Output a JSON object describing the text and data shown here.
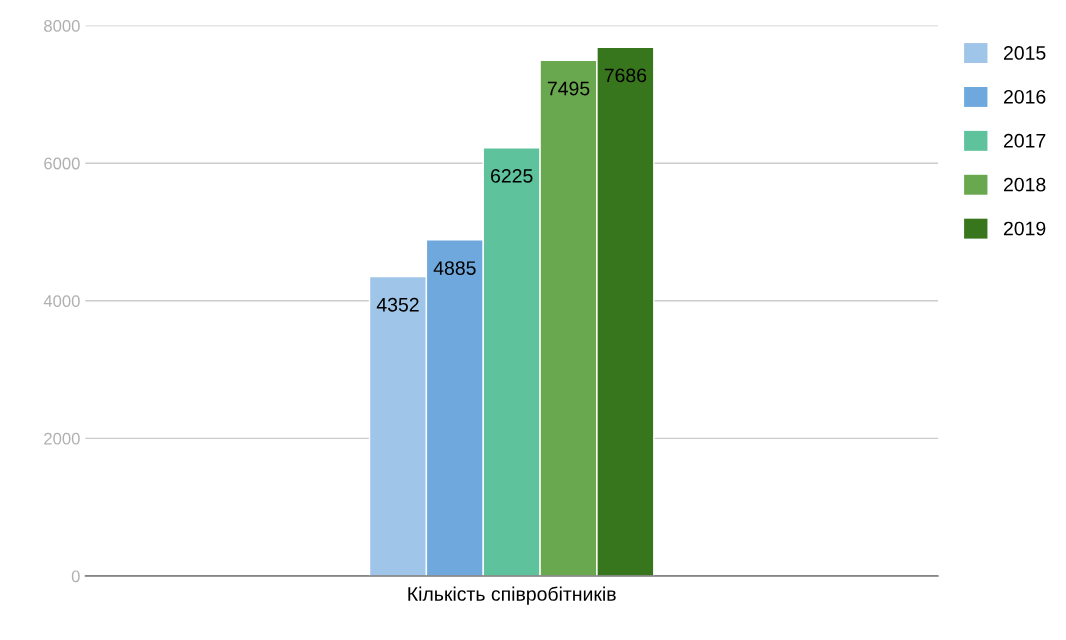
{
  "chart_data": {
    "type": "bar",
    "xlabel": "Кількість співробітників",
    "categories": [
      null
    ],
    "series": [
      {
        "name": "2015",
        "color": "#9fc5e8",
        "values": [
          4352
        ]
      },
      {
        "name": "2016",
        "color": "#6fa8dc",
        "values": [
          4885
        ]
      },
      {
        "name": "2017",
        "color": "#5ec29c",
        "values": [
          6225
        ]
      },
      {
        "name": "2018",
        "color": "#6aa84f",
        "values": [
          7495
        ]
      },
      {
        "name": "2019",
        "color": "#38761d",
        "values": [
          7686
        ]
      }
    ],
    "ylim": [
      0,
      8000
    ],
    "yticks": [
      0,
      2000,
      4000,
      6000,
      8000
    ],
    "grid": "y",
    "legend": "right",
    "data_labels": true
  }
}
